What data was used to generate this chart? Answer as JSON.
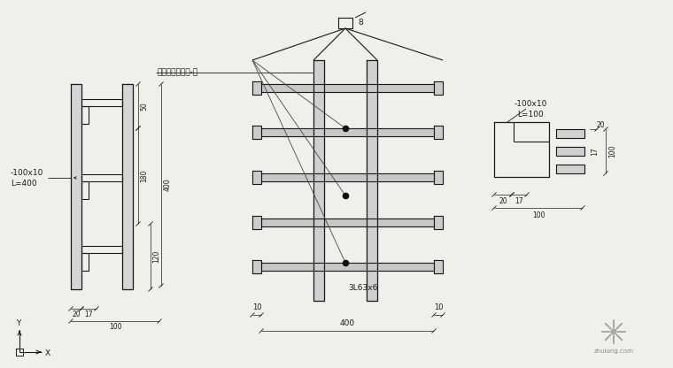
{
  "bg_color": "#f0f0eb",
  "line_color": "#1a1a1a",
  "fig_width": 7.6,
  "fig_height": 4.16,
  "dpi": 100,
  "annotations": {
    "top_label": "8",
    "center_label": "预埋于柱间支撑-侧",
    "left_label1": "-100x10",
    "left_label2": "L=400",
    "right_label1": "-100x10",
    "right_label2": "L=100",
    "bolt_label": "3L63x6",
    "dim_50": "50",
    "dim_180": "180",
    "dim_120": "120",
    "dim_400_vert": "400",
    "dim_20_left": "20",
    "dim_17_left": "17",
    "dim_100_left": "100",
    "dim_10_left": "10",
    "dim_10_right": "10",
    "dim_400_horiz": "400",
    "dim_20_right": "20",
    "dim_17_right": "17",
    "dim_100_right": "100",
    "watermark": "zhulong.com"
  }
}
